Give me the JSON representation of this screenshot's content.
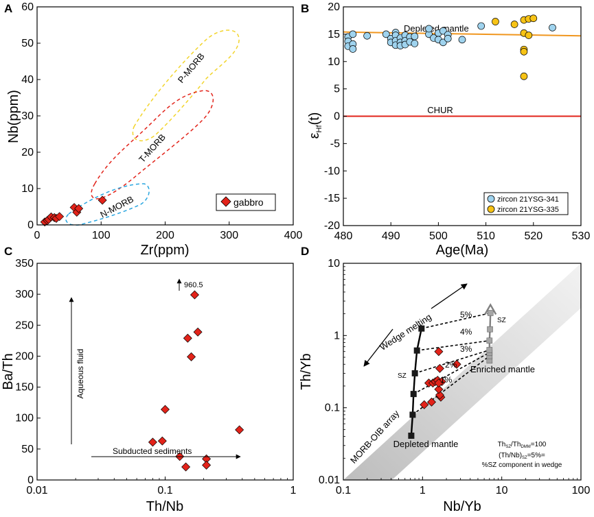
{
  "colors": {
    "axis": "#000000",
    "gabbro": "#e2231a",
    "zircon341": "#9fd3ee",
    "zircon335": "#f7c316",
    "depleted_line": "#f0961e",
    "chur_line": "#e2231a",
    "pmorb": "#f2d42a",
    "tmorb": "#e2231a",
    "nmorb": "#2aa6e0",
    "melt_curve": "#000000",
    "sz_curve": "#808080"
  },
  "chart_data": [
    {
      "panel": "A",
      "type": "scatter",
      "xlabel": "Zr(ppm)",
      "ylabel": "Nb(ppm)",
      "xlim": [
        0,
        400
      ],
      "ylim": [
        0,
        60
      ],
      "xticks": [
        "0",
        "100",
        "200",
        "300",
        "400"
      ],
      "yticks": [
        "0",
        "10",
        "20",
        "30",
        "40",
        "50",
        "60"
      ],
      "fields": [
        {
          "name": "P-MORB",
          "label": "P-MORB"
        },
        {
          "name": "T-MORB",
          "label": "T-MORB"
        },
        {
          "name": "N-MORB",
          "label": "N-MORB"
        }
      ],
      "series": [
        {
          "name": "gabbro",
          "points": [
            [
              12,
              0.8
            ],
            [
              16,
              1.2
            ],
            [
              18,
              1.5
            ],
            [
              22,
              2.2
            ],
            [
              27,
              2.0
            ],
            [
              30,
              1.8
            ],
            [
              35,
              2.3
            ],
            [
              58,
              4.8
            ],
            [
              62,
              3.5
            ],
            [
              65,
              4.5
            ],
            [
              102,
              6.8
            ]
          ]
        }
      ],
      "legend": "gabbro"
    },
    {
      "panel": "B",
      "type": "scatter",
      "xlabel": "Age(Ma)",
      "ylabel": "εHf(t)",
      "ylabel_main": "ε",
      "ylabel_sub": "Hf",
      "ylabel_tail": "(t)",
      "xlim": [
        480,
        530
      ],
      "ylim": [
        -20,
        20
      ],
      "xticks": [
        "480",
        "490",
        "500",
        "510",
        "520",
        "530"
      ],
      "yticks": [
        "20",
        "15",
        "10",
        "5",
        "0",
        "-5",
        "-10",
        "-15",
        "-20"
      ],
      "reference_lines": [
        {
          "name": "Depleted mantle",
          "label": "Depleted mantle",
          "x": [
            480,
            530
          ],
          "y": [
            15.4,
            14.7
          ]
        },
        {
          "name": "CHUR",
          "label": "CHUR",
          "x": [
            480,
            530
          ],
          "y": [
            0,
            0
          ]
        }
      ],
      "series": [
        {
          "name": "zircon 21YSG-341",
          "points": [
            [
              481,
              14.5
            ],
            [
              481,
              13.7
            ],
            [
              481,
              12.8
            ],
            [
              482,
              15.0
            ],
            [
              482,
              13.2
            ],
            [
              482,
              12.3
            ],
            [
              485,
              14.7
            ],
            [
              489,
              15.0
            ],
            [
              490,
              14.2
            ],
            [
              490,
              13.5
            ],
            [
              491,
              15.3
            ],
            [
              491,
              14.8
            ],
            [
              491,
              13.8
            ],
            [
              491,
              13.0
            ],
            [
              492,
              14.3
            ],
            [
              492,
              13.5
            ],
            [
              492,
              12.9
            ],
            [
              493,
              14.8
            ],
            [
              493,
              13.8
            ],
            [
              493,
              13.1
            ],
            [
              494,
              14.5
            ],
            [
              494,
              13.6
            ],
            [
              495,
              14.6
            ],
            [
              495,
              13.3
            ],
            [
              498,
              15.0
            ],
            [
              498,
              16.0
            ],
            [
              499,
              14.3
            ],
            [
              500,
              15.2
            ],
            [
              500,
              14.0
            ],
            [
              501,
              15.6
            ],
            [
              501,
              13.5
            ],
            [
              502,
              14.9
            ],
            [
              502,
              14.2
            ],
            [
              505,
              14.0
            ],
            [
              509,
              16.5
            ],
            [
              524,
              16.2
            ]
          ]
        },
        {
          "name": "zircon 21YSG-335",
          "points": [
            [
              512,
              17.3
            ],
            [
              516,
              16.8
            ],
            [
              518,
              17.6
            ],
            [
              518,
              15.2
            ],
            [
              518,
              12.2
            ],
            [
              518,
              11.8
            ],
            [
              518,
              7.3
            ],
            [
              519,
              17.8
            ],
            [
              519,
              14.8
            ],
            [
              520,
              17.9
            ]
          ]
        }
      ],
      "legend": [
        "zircon 21YSG-341",
        "zircon 21YSG-335"
      ]
    },
    {
      "panel": "C",
      "type": "scatter",
      "xscale": "log",
      "xlabel": "Th/Nb",
      "ylabel": "Ba/Th",
      "xlim": [
        0.01,
        1
      ],
      "ylim": [
        0,
        350
      ],
      "xticks": [
        "0.01",
        "0.1",
        "1"
      ],
      "yticks": [
        "0",
        "50",
        "100",
        "150",
        "200",
        "250",
        "300",
        "350"
      ],
      "annotations": [
        "Aqueous fluid",
        "Subducted sediments",
        "960.5"
      ],
      "series": [
        {
          "name": "gabbro",
          "points": [
            [
              0.08,
              61
            ],
            [
              0.095,
              63
            ],
            [
              0.1,
              114
            ],
            [
              0.13,
              38
            ],
            [
              0.145,
              21
            ],
            [
              0.15,
              229
            ],
            [
              0.16,
              199
            ],
            [
              0.17,
              299
            ],
            [
              0.18,
              239
            ],
            [
              0.21,
              34
            ],
            [
              0.21,
              24
            ],
            [
              0.38,
              81
            ]
          ]
        }
      ]
    },
    {
      "panel": "D",
      "type": "scatter",
      "xscale": "log",
      "yscale": "log",
      "xlabel": "Nb/Yb",
      "ylabel": "Th/Yb",
      "xlim": [
        0.1,
        100
      ],
      "ylim": [
        0.01,
        10
      ],
      "xticks": [
        "0.1",
        "1",
        "10",
        "100"
      ],
      "yticks": [
        "0.01",
        "0.1",
        "1",
        "10"
      ],
      "annotations": [
        "Wedge melting",
        "SZ",
        "SZ",
        "MORB-OIB array",
        "Depleted mantle",
        "Enriched mantle"
      ],
      "mixing_labels": [
        "5%",
        "4%",
        "3%",
        "2%",
        "1%"
      ],
      "note_lines": [
        "Th_SZ/Th_DMM=100",
        "(Th/Nb)_SZ=5%=",
        "%SZ component in wedge"
      ],
      "note_line1": {
        "a": "Th",
        "a_sub": "SZ",
        "b": "/Th",
        "b_sub": "DMM",
        "c": "=100"
      },
      "note_line2": {
        "a": "(Th/Nb)",
        "a_sub": "SZ",
        "b": "=5%="
      },
      "note_line3": "%SZ component in wedge",
      "series": [
        {
          "name": "melting curve",
          "points": [
            [
              0.72,
              0.041
            ],
            [
              0.75,
              0.08
            ],
            [
              0.77,
              0.155
            ],
            [
              0.8,
              0.3
            ],
            [
              0.85,
              0.62
            ],
            [
              0.97,
              1.25
            ]
          ]
        },
        {
          "name": "enriched curve",
          "points": [
            [
              7.0,
              0.45
            ],
            [
              7.0,
              0.52
            ],
            [
              7.0,
              0.58
            ],
            [
              7.0,
              0.63
            ],
            [
              7.0,
              0.85
            ],
            [
              7.1,
              1.22
            ],
            [
              7.2,
              2.05
            ]
          ]
        },
        {
          "name": "gabbro",
          "points": [
            [
              1.05,
              0.11
            ],
            [
              1.3,
              0.12
            ],
            [
              1.2,
              0.22
            ],
            [
              1.35,
              0.22
            ],
            [
              1.45,
              0.23
            ],
            [
              1.55,
              0.24
            ],
            [
              1.75,
              0.23
            ],
            [
              1.65,
              0.35
            ],
            [
              1.6,
              0.6
            ],
            [
              1.7,
              0.14
            ],
            [
              1.65,
              0.15
            ],
            [
              1.6,
              0.18
            ],
            [
              2.7,
              0.4
            ],
            [
              1.6,
              0.22
            ]
          ]
        }
      ]
    }
  ]
}
